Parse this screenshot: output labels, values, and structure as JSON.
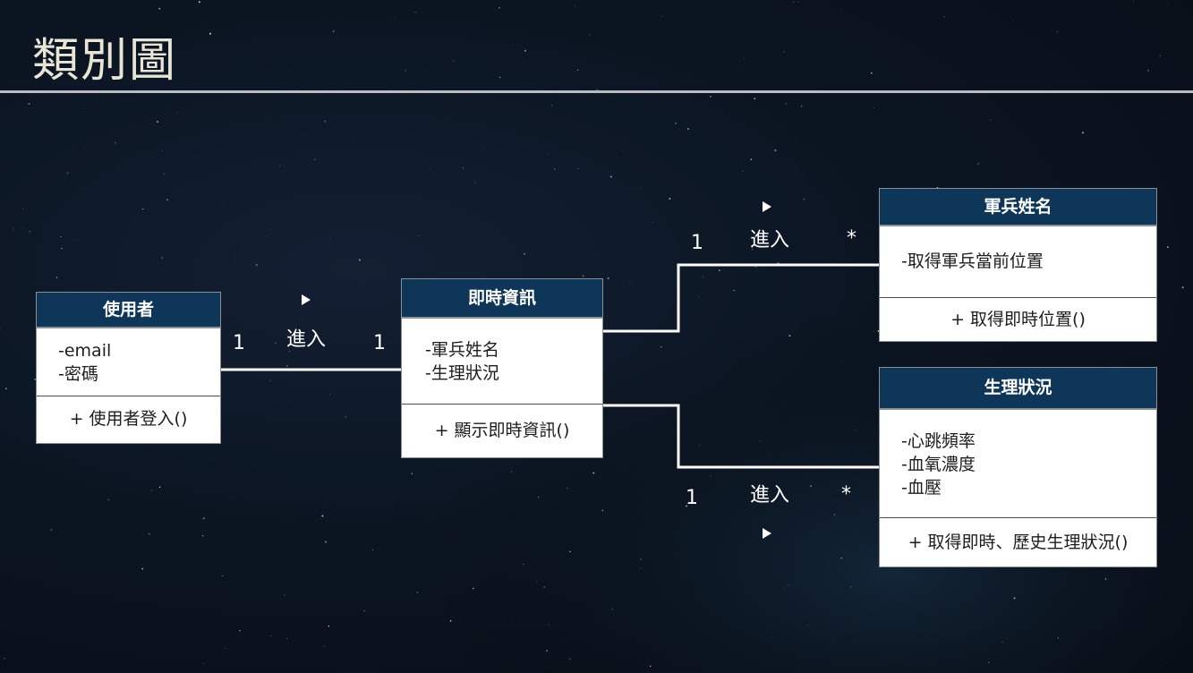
{
  "slide": {
    "title": "類別圖"
  },
  "classes": {
    "user": {
      "name": "使用者",
      "attributes": [
        "-email",
        "-密碼"
      ],
      "operations": [
        "+ 使用者登入()"
      ]
    },
    "realtime": {
      "name": "即時資訊",
      "attributes": [
        "-軍兵姓名",
        "-生理狀況"
      ],
      "operations": [
        "+ 顯示即時資訊()"
      ]
    },
    "soldier": {
      "name": "軍兵姓名",
      "attributes": [
        "-取得軍兵當前位置"
      ],
      "operations": [
        "+ 取得即時位置()"
      ]
    },
    "physio": {
      "name": "生理狀況",
      "attributes": [
        "-心跳頻率",
        "-血氧濃度",
        "-血壓"
      ],
      "operations": [
        "+ 取得即時、歷史生理狀況()"
      ]
    }
  },
  "associations": [
    {
      "from": "使用者",
      "to": "即時資訊",
      "label": "進入",
      "from_mult": "1",
      "to_mult": "1",
      "direction_icon": "play-arrow"
    },
    {
      "from": "即時資訊",
      "to": "軍兵姓名",
      "label": "進入",
      "from_mult": "1",
      "to_mult": "*",
      "direction_icon": "play-arrow"
    },
    {
      "from": "即時資訊",
      "to": "生理狀況",
      "label": "進入",
      "from_mult": "1",
      "to_mult": "*",
      "direction_icon": "play-arrow"
    }
  ]
}
